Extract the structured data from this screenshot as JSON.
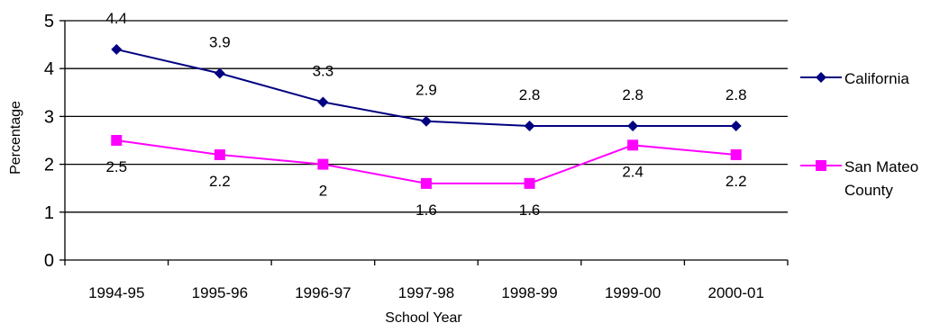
{
  "chart_data": {
    "type": "line",
    "title": "",
    "xlabel": "School Year",
    "ylabel": "Percentage",
    "categories": [
      "1994-95",
      "1995-96",
      "1996-97",
      "1997-98",
      "1998-99",
      "1999-00",
      "2000-01"
    ],
    "ylim": [
      0,
      5
    ],
    "yticks": [
      0,
      1,
      2,
      3,
      4,
      5
    ],
    "grid": true,
    "legend_position": "right",
    "series": [
      {
        "name": "California",
        "legend_lines": [
          "California"
        ],
        "values": [
          4.4,
          3.9,
          3.3,
          2.9,
          2.8,
          2.8,
          2.8
        ],
        "labels": [
          "4.4",
          "3.9",
          "3.3",
          "2.9",
          "2.8",
          "2.8",
          "2.8"
        ],
        "color": "#000080",
        "marker": "diamond",
        "label_side": "above"
      },
      {
        "name": "San Mateo County",
        "legend_lines": [
          "San Mateo",
          "County"
        ],
        "values": [
          2.5,
          2.2,
          2.0,
          1.6,
          1.6,
          2.4,
          2.2
        ],
        "labels": [
          "2.5",
          "2.2",
          "2",
          "1.6",
          "1.6",
          "2.4",
          "2.2"
        ],
        "color": "#FF00FF",
        "marker": "square",
        "label_side": "below"
      }
    ]
  }
}
